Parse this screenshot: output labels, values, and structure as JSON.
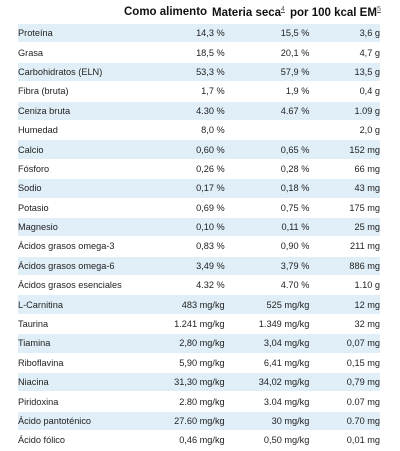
{
  "header": {
    "col_como": "Como alimento",
    "col_ms": "Materia seca",
    "col_ms_note": "4",
    "col_kcal": "por 100 kcal EM",
    "col_kcal_note": "5"
  },
  "rows": [
    {
      "name": "Proteína",
      "como": "14,3 %",
      "ms": "15,5 %",
      "kcal": "3,6 g"
    },
    {
      "name": "Grasa",
      "como": "18,5 %",
      "ms": "20,1 %",
      "kcal": "4,7 g"
    },
    {
      "name": "Carbohidratos (ELN)",
      "como": "53,3 %",
      "ms": "57,9 %",
      "kcal": "13,5 g"
    },
    {
      "name": "Fibra (bruta)",
      "como": "1,7 %",
      "ms": "1,9 %",
      "kcal": "0,4 g"
    },
    {
      "name": "Ceniza bruta",
      "como": "4.30 %",
      "ms": "4.67 %",
      "kcal": "1.09 g"
    },
    {
      "name": "Humedad",
      "como": "8,0 %",
      "ms": "",
      "kcal": "2,0 g"
    },
    {
      "name": "Calcio",
      "como": "0,60 %",
      "ms": "0,65 %",
      "kcal": "152 mg"
    },
    {
      "name": "Fósforo",
      "como": "0,26 %",
      "ms": "0,28 %",
      "kcal": "66 mg"
    },
    {
      "name": "Sodio",
      "como": "0,17 %",
      "ms": "0,18 %",
      "kcal": "43 mg"
    },
    {
      "name": "Potasio",
      "como": "0,69 %",
      "ms": "0,75 %",
      "kcal": "175 mg"
    },
    {
      "name": "Magnesio",
      "como": "0,10 %",
      "ms": "0,11 %",
      "kcal": "25 mg"
    },
    {
      "name": "Ácidos grasos omega-3",
      "como": "0,83 %",
      "ms": "0,90 %",
      "kcal": "211 mg"
    },
    {
      "name": "Ácidos grasos omega-6",
      "como": "3,49 %",
      "ms": "3,79 %",
      "kcal": "886 mg"
    },
    {
      "name": "Ácidos grasos esenciales",
      "como": "4.32 %",
      "ms": "4.70 %",
      "kcal": "1.10 g"
    },
    {
      "name": "L-Carnitina",
      "como": "483 mg/kg",
      "ms": "525 mg/kg",
      "kcal": "12 mg"
    },
    {
      "name": "Taurina",
      "como": "1.241 mg/kg",
      "ms": "1.349 mg/kg",
      "kcal": "32 mg"
    },
    {
      "name": "Tiamina",
      "como": "2,80 mg/kg",
      "ms": "3,04 mg/kg",
      "kcal": "0,07 mg"
    },
    {
      "name": "Riboflavina",
      "como": "5,90 mg/kg",
      "ms": "6,41 mg/kg",
      "kcal": "0,15 mg"
    },
    {
      "name": "Niacina",
      "como": "31,30 mg/kg",
      "ms": "34,02 mg/kg",
      "kcal": "0,79 mg"
    },
    {
      "name": "Piridoxina",
      "como": "2.80 mg/kg",
      "ms": "3.04 mg/kg",
      "kcal": "0.07 mg"
    },
    {
      "name": "Ácido pantoténico",
      "como": "27.60 mg/kg",
      "ms": "30 mg/kg",
      "kcal": "0.70 mg"
    },
    {
      "name": "Ácido fólico",
      "como": "0,46 mg/kg",
      "ms": "0,50 mg/kg",
      "kcal": "0,01 mg"
    }
  ]
}
